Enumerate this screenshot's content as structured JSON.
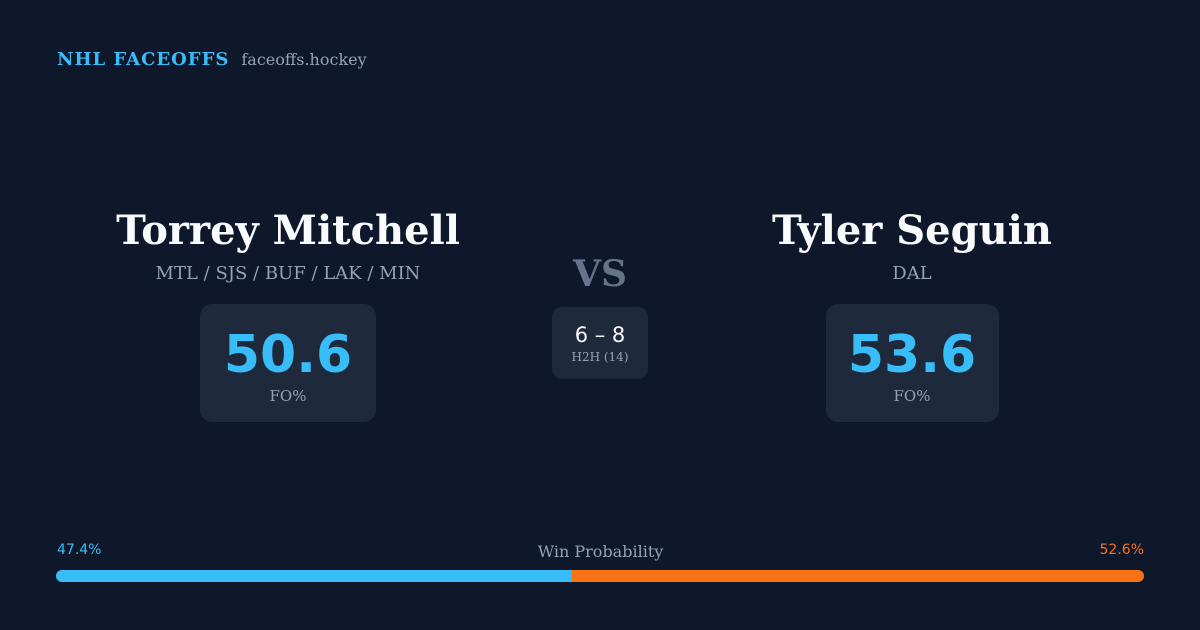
{
  "brand": {
    "title": "NHL FACEOFFS",
    "site": "faceoffs.hockey"
  },
  "players": [
    {
      "name": "Torrey Mitchell",
      "teams": "MTL / SJS / BUF / LAK / MIN",
      "fo_pct": "50.6",
      "fo_label": "FO%"
    },
    {
      "name": "Tyler Seguin",
      "teams": "DAL",
      "fo_pct": "53.6",
      "fo_label": "FO%"
    }
  ],
  "versus": {
    "label": "VS",
    "h2h_score": "6 – 8",
    "h2h_label": "H2H (14)"
  },
  "win_probability": {
    "label": "Win Probability",
    "left_text": "47.4%",
    "right_text": "52.6%",
    "left_value": 47.4,
    "right_value": 52.6,
    "left_color": "#38bdf8",
    "right_color": "#f97316"
  },
  "colors": {
    "background": "#0f172a",
    "card": "#1e293b",
    "accent": "#38bdf8",
    "muted": "#94a3b8"
  }
}
